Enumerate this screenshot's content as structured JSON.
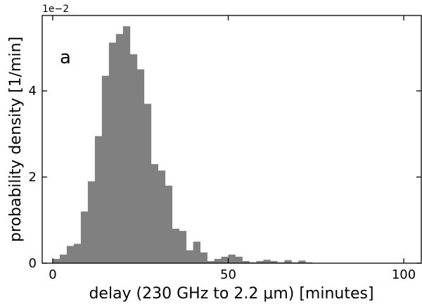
{
  "chart_data": {
    "type": "bar",
    "panel_label": "a",
    "xlabel": "delay (230 GHz to 2.2 μm) [minutes]",
    "ylabel": "probability density [1/min]",
    "y_offset_label": "1e−2",
    "xlim": [
      -3,
      105
    ],
    "ylim": [
      0,
      5.75
    ],
    "y_scale_factor": 0.01,
    "x_ticks": [
      0,
      50,
      100
    ],
    "x_tick_labels": [
      "0",
      "50",
      "100"
    ],
    "y_ticks": [
      0,
      2,
      4
    ],
    "y_tick_labels": [
      "0",
      "2",
      "4"
    ],
    "bin_width": 2,
    "bar_color": "#808080",
    "bins": [
      {
        "x": 0,
        "value": 0.1
      },
      {
        "x": 2,
        "value": 0.2
      },
      {
        "x": 4,
        "value": 0.4
      },
      {
        "x": 6,
        "value": 0.45
      },
      {
        "x": 8,
        "value": 1.2
      },
      {
        "x": 10,
        "value": 1.9
      },
      {
        "x": 12,
        "value": 2.95
      },
      {
        "x": 14,
        "value": 4.35
      },
      {
        "x": 16,
        "value": 5.12
      },
      {
        "x": 18,
        "value": 5.32
      },
      {
        "x": 20,
        "value": 5.5
      },
      {
        "x": 22,
        "value": 4.85
      },
      {
        "x": 24,
        "value": 4.5
      },
      {
        "x": 26,
        "value": 3.7
      },
      {
        "x": 28,
        "value": 2.3
      },
      {
        "x": 30,
        "value": 2.15
      },
      {
        "x": 32,
        "value": 1.8
      },
      {
        "x": 34,
        "value": 0.8
      },
      {
        "x": 36,
        "value": 0.75
      },
      {
        "x": 38,
        "value": 0.3
      },
      {
        "x": 40,
        "value": 0.5
      },
      {
        "x": 42,
        "value": 0.25
      },
      {
        "x": 44,
        "value": 0.05
      },
      {
        "x": 46,
        "value": 0.1
      },
      {
        "x": 48,
        "value": 0.15
      },
      {
        "x": 50,
        "value": 0.2
      },
      {
        "x": 52,
        "value": 0.15
      },
      {
        "x": 54,
        "value": 0.05
      },
      {
        "x": 56,
        "value": 0.02
      },
      {
        "x": 58,
        "value": 0.05
      },
      {
        "x": 60,
        "value": 0.08
      },
      {
        "x": 62,
        "value": 0.05
      },
      {
        "x": 64,
        "value": 0.02
      },
      {
        "x": 66,
        "value": 0.07
      },
      {
        "x": 68,
        "value": 0.02
      },
      {
        "x": 70,
        "value": 0.06
      },
      {
        "x": 72,
        "value": 0.02
      }
    ]
  }
}
